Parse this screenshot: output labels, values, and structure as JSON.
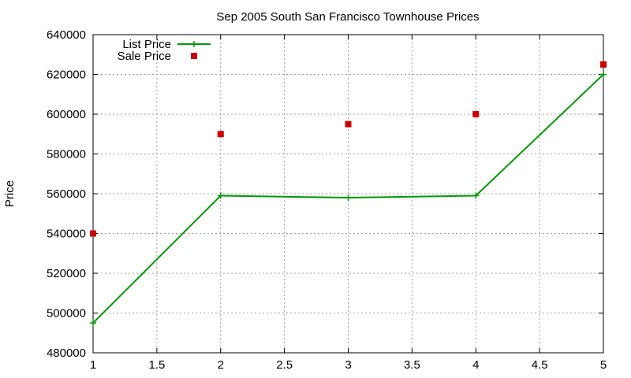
{
  "chart_data": {
    "type": "line",
    "title": "Sep 2005 South San Francisco Townhouse Prices",
    "xlabel": "",
    "ylabel": "Price",
    "xlim": [
      1,
      5
    ],
    "ylim": [
      480000,
      640000
    ],
    "xticks": [
      1,
      1.5,
      2,
      2.5,
      3,
      3.5,
      4,
      4.5,
      5
    ],
    "xtick_labels": [
      "1",
      "1.5",
      "2",
      "2.5",
      "3",
      "3.5",
      "4",
      "4.5",
      "5"
    ],
    "yticks": [
      480000,
      500000,
      520000,
      540000,
      560000,
      580000,
      600000,
      620000,
      640000
    ],
    "ytick_labels": [
      "480000",
      "500000",
      "520000",
      "540000",
      "560000",
      "580000",
      "600000",
      "620000",
      "640000"
    ],
    "grid": true,
    "legend_position": "top-left",
    "series": [
      {
        "name": "List Price",
        "style": "linespoints",
        "color": "#009900",
        "x": [
          1,
          2,
          3,
          4,
          5
        ],
        "y": [
          495000,
          559000,
          558000,
          559000,
          620000
        ]
      },
      {
        "name": "Sale Price",
        "style": "points",
        "color": "#cc0000",
        "x": [
          1,
          2,
          3,
          4,
          5
        ],
        "y": [
          540000,
          590000,
          595000,
          600000,
          625000
        ]
      }
    ]
  }
}
